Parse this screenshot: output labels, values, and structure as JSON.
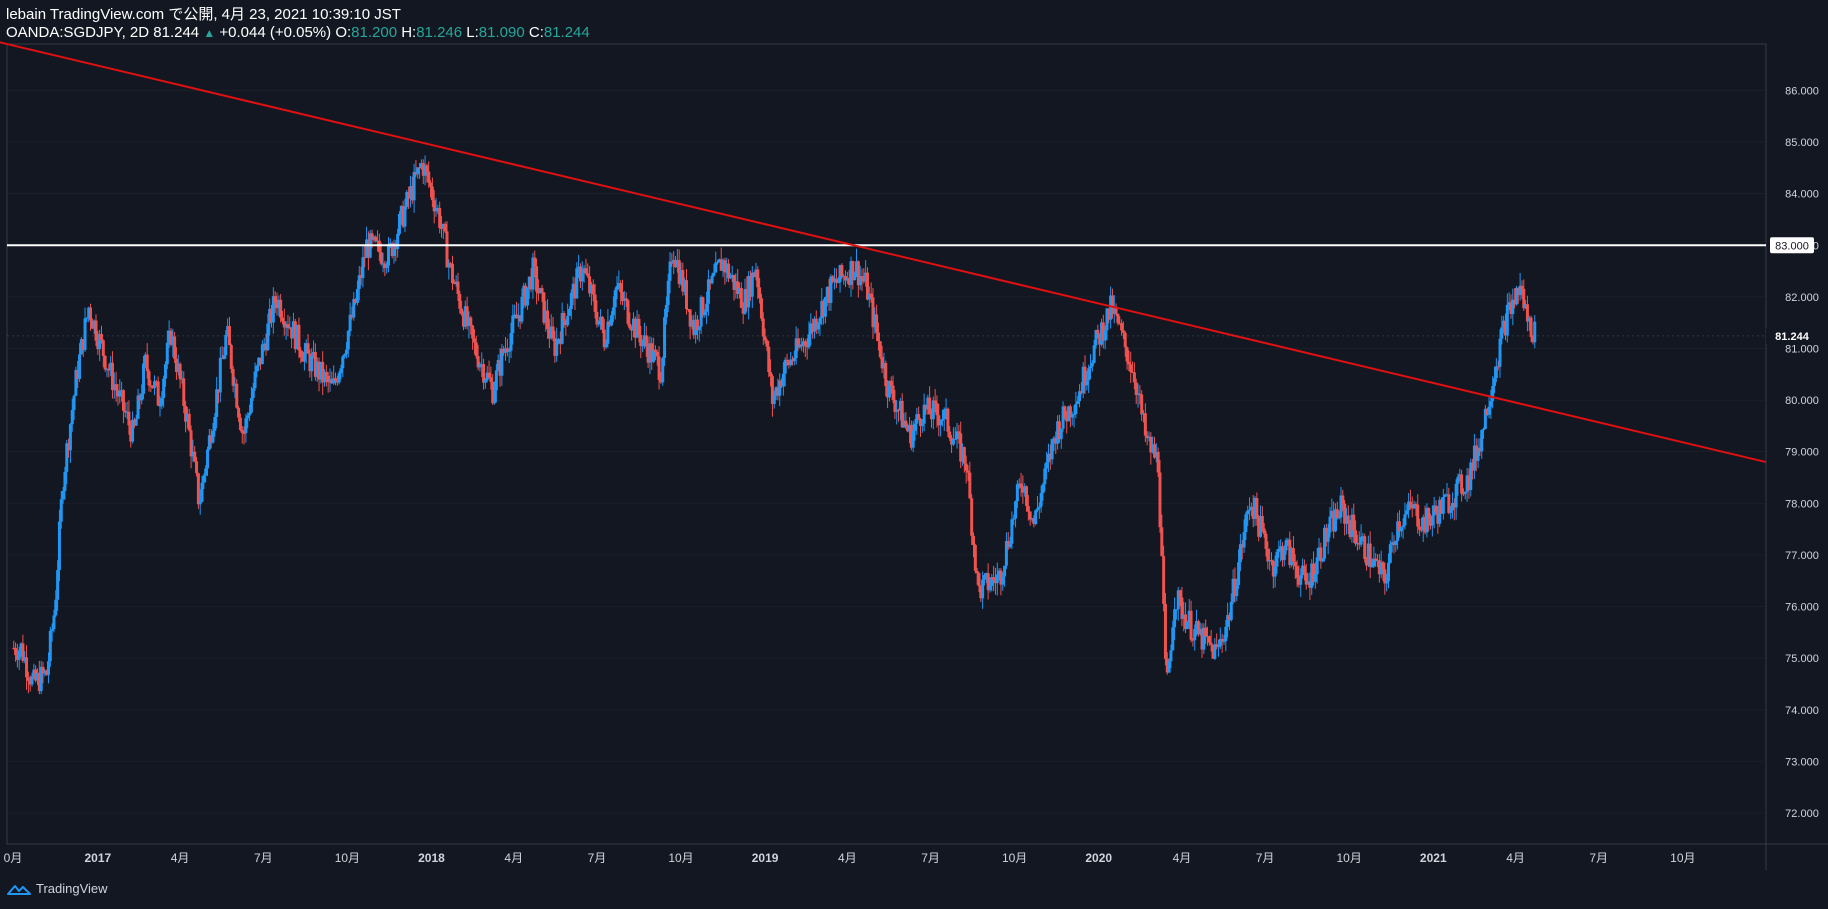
{
  "header": {
    "line1": "lebain TradingView.com で公開, 4月 23, 2021 10:39:10 JST",
    "symbol": "OANDA:SGDJPY, 2D 81.244",
    "change_arrow": "▲",
    "change": "+0.044 (+0.05%)",
    "o_label": "O:",
    "o_value": "81.200",
    "h_label": "H:",
    "h_value": "81.246",
    "l_label": "L:",
    "l_value": "81.090",
    "c_label": "C:",
    "c_value": "81.244"
  },
  "footer": {
    "brand": "TradingView",
    "logo_icon": "tradingview-logo-icon"
  },
  "colors": {
    "background": "#131722",
    "up": "#2196f3",
    "down": "#ef5350",
    "trendline": "#e01010",
    "hline": "#ffffff",
    "grid": "#2a2e39",
    "axis_text": "#d1d4dc",
    "change_up": "#26a69a"
  },
  "chart_data": {
    "type": "candlestick",
    "symbol": "OANDA:SGDJPY",
    "interval": "2D",
    "ylim": [
      71.4,
      86.9
    ],
    "y_ticks": [
      "86.000",
      "85.000",
      "84.000",
      "83.000",
      "82.000",
      "81.000",
      "80.000",
      "79.000",
      "78.000",
      "77.000",
      "76.000",
      "75.000",
      "74.000",
      "73.000",
      "72.000"
    ],
    "x_ticks": [
      "0月",
      "2017",
      "4月",
      "7月",
      "10月",
      "2018",
      "4月",
      "7月",
      "10月",
      "2019",
      "4月",
      "7月",
      "10月",
      "2020",
      "4月",
      "7月",
      "10月",
      "2021",
      "4月",
      "7月",
      "10月"
    ],
    "last_price_label": "81.244",
    "level_label": "83.000",
    "horizontal_line": {
      "price": 83.0
    },
    "trendline": {
      "start": {
        "date": "2016-09",
        "price": 86.95
      },
      "end": {
        "date": "2021-12",
        "price": 78.8
      }
    },
    "close_path": [
      [
        "2016-10",
        75.2
      ],
      [
        "2016-10",
        74.5
      ],
      [
        "2016-11",
        74.7
      ],
      [
        "2016-11",
        76.0
      ],
      [
        "2016-11",
        78.5
      ],
      [
        "2016-12",
        80.5
      ],
      [
        "2016-12",
        81.8
      ],
      [
        "2017-01",
        80.5
      ],
      [
        "2017-02",
        79.3
      ],
      [
        "2017-02",
        80.7
      ],
      [
        "2017-03",
        80.0
      ],
      [
        "2017-03",
        81.3
      ],
      [
        "2017-04",
        79.6
      ],
      [
        "2017-04",
        78.0
      ],
      [
        "2017-05",
        79.9
      ],
      [
        "2017-05",
        81.3
      ],
      [
        "2017-06",
        79.3
      ],
      [
        "2017-06",
        80.4
      ],
      [
        "2017-07",
        82.0
      ],
      [
        "2017-08",
        80.9
      ],
      [
        "2017-09",
        80.2
      ],
      [
        "2017-10",
        81.8
      ],
      [
        "2017-10",
        83.0
      ],
      [
        "2017-11",
        82.8
      ],
      [
        "2017-12",
        84.0
      ],
      [
        "2017-12",
        84.6
      ],
      [
        "2018-01",
        83.6
      ],
      [
        "2018-01",
        82.5
      ],
      [
        "2018-02",
        81.1
      ],
      [
        "2018-03",
        80.2
      ],
      [
        "2018-03",
        81.0
      ],
      [
        "2018-04",
        81.8
      ],
      [
        "2018-04",
        82.5
      ],
      [
        "2018-05",
        81.0
      ],
      [
        "2018-06",
        82.6
      ],
      [
        "2018-07",
        81.2
      ],
      [
        "2018-07",
        82.2
      ],
      [
        "2018-08",
        81.3
      ],
      [
        "2018-09",
        80.6
      ],
      [
        "2018-09",
        83.0
      ],
      [
        "2018-10",
        81.4
      ],
      [
        "2018-11",
        82.7
      ],
      [
        "2018-12",
        81.9
      ],
      [
        "2018-12",
        82.6
      ],
      [
        "2019-01",
        80.0
      ],
      [
        "2019-01",
        80.6
      ],
      [
        "2019-02",
        81.2
      ],
      [
        "2019-03",
        82.2
      ],
      [
        "2019-04",
        82.6
      ],
      [
        "2019-04",
        82.2
      ],
      [
        "2019-05",
        80.3
      ],
      [
        "2019-06",
        79.3
      ],
      [
        "2019-06",
        79.8
      ],
      [
        "2019-07",
        79.7
      ],
      [
        "2019-08",
        78.8
      ],
      [
        "2019-08",
        76.3
      ],
      [
        "2019-09",
        76.6
      ],
      [
        "2019-10",
        78.5
      ],
      [
        "2019-10",
        77.6
      ],
      [
        "2019-11",
        79.4
      ],
      [
        "2019-12",
        80.1
      ],
      [
        "2019-12",
        80.8
      ],
      [
        "2020-01",
        81.8
      ],
      [
        "2020-02",
        80.5
      ],
      [
        "2020-02",
        79.2
      ],
      [
        "2020-03",
        78.8
      ],
      [
        "2020-03",
        74.3
      ],
      [
        "2020-03",
        76.2
      ],
      [
        "2020-04",
        75.5
      ],
      [
        "2020-05",
        75.1
      ],
      [
        "2020-05",
        75.8
      ],
      [
        "2020-06",
        78.1
      ],
      [
        "2020-07",
        76.8
      ],
      [
        "2020-07",
        77.2
      ],
      [
        "2020-08",
        76.4
      ],
      [
        "2020-09",
        77.5
      ],
      [
        "2020-09",
        77.9
      ],
      [
        "2020-10",
        77.2
      ],
      [
        "2020-11",
        76.5
      ],
      [
        "2020-11",
        77.6
      ],
      [
        "2020-12",
        77.9
      ],
      [
        "2020-12",
        77.6
      ],
      [
        "2021-01",
        78.0
      ],
      [
        "2021-02",
        78.5
      ],
      [
        "2021-02",
        79.3
      ],
      [
        "2021-03",
        80.6
      ],
      [
        "2021-03",
        81.6
      ],
      [
        "2021-04",
        82.2
      ],
      [
        "2021-04",
        81.5
      ],
      [
        "2021-04",
        81.244
      ]
    ]
  }
}
